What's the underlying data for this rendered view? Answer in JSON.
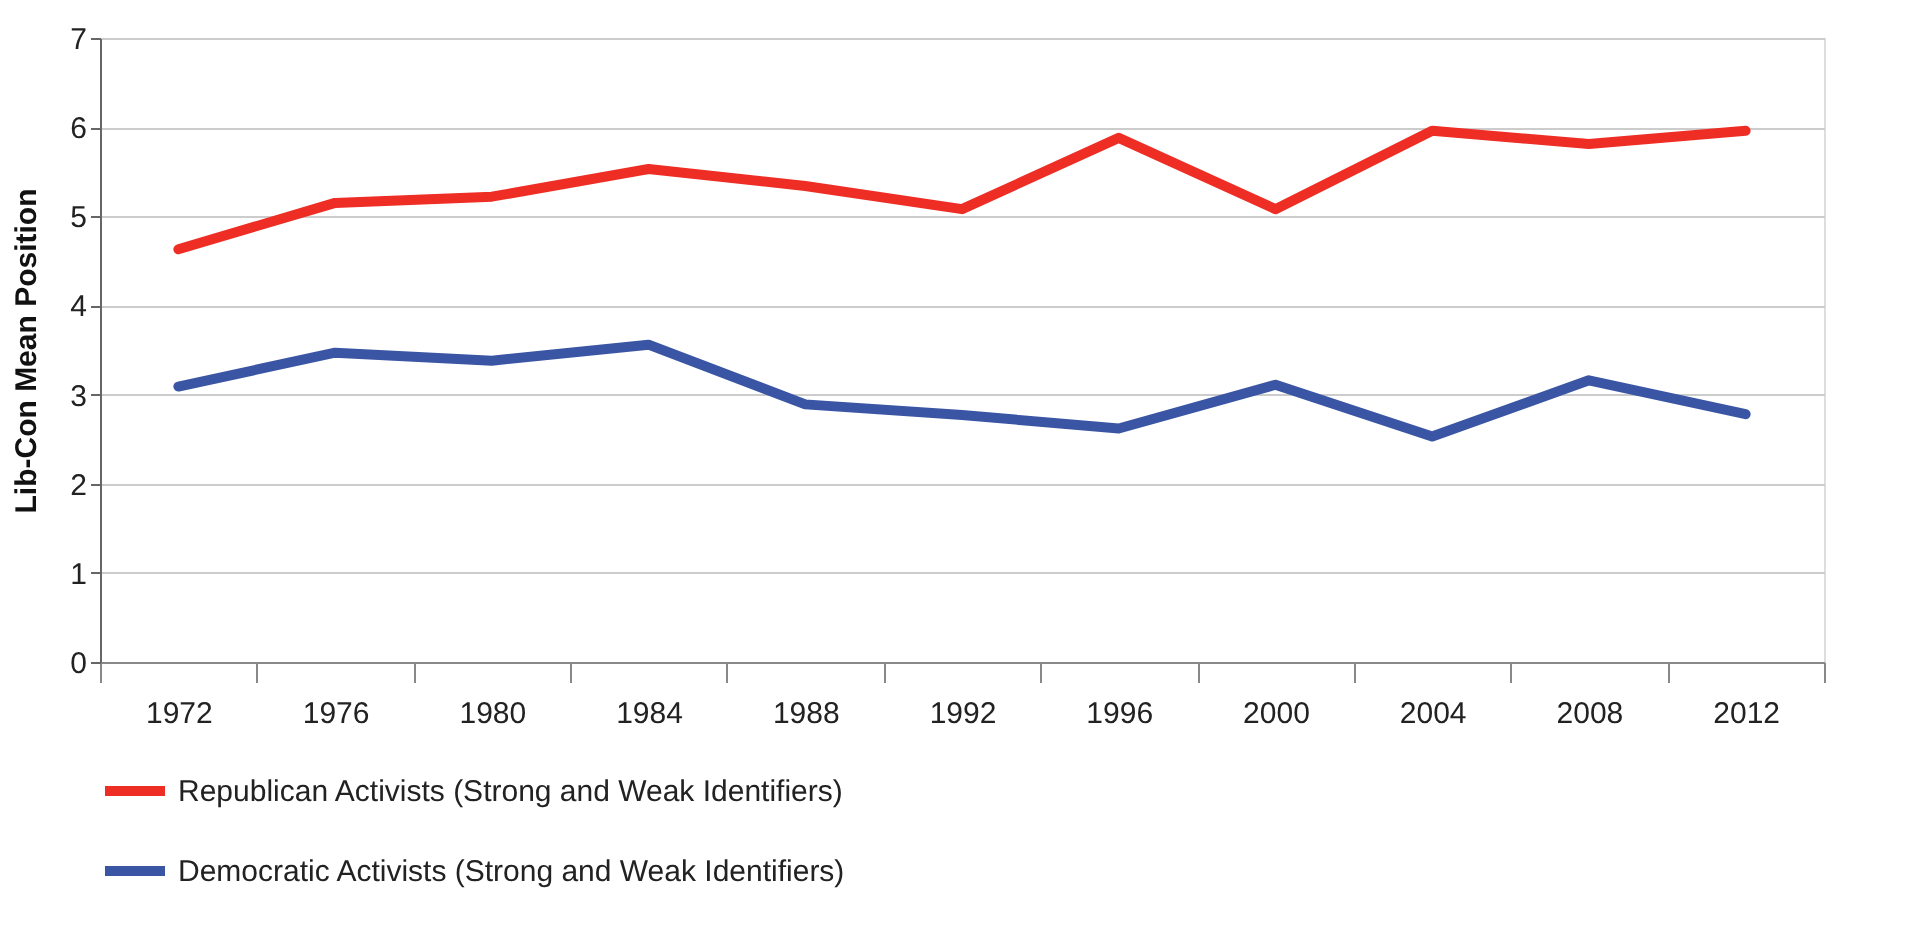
{
  "chart_data": {
    "type": "line",
    "ylabel": "Lib-Con Mean Position",
    "categories": [
      "1972",
      "1976",
      "1980",
      "1984",
      "1988",
      "1992",
      "1996",
      "2000",
      "2004",
      "2008",
      "2012"
    ],
    "series": [
      {
        "name": "Republican Activists (Strong and Weak Identifiers)",
        "color": "#ee2d24",
        "values": [
          4.63,
          5.15,
          5.22,
          5.53,
          5.34,
          5.08,
          5.88,
          5.08,
          5.96,
          5.81,
          5.96
        ]
      },
      {
        "name": "Democratic Activists (Strong and Weak Identifiers)",
        "color": "#3a55a4",
        "values": [
          3.09,
          3.47,
          3.38,
          3.56,
          2.89,
          2.77,
          2.62,
          3.11,
          2.53,
          3.16,
          2.78
        ]
      }
    ],
    "ylim": [
      0,
      7
    ],
    "yticks": [
      0,
      1,
      2,
      3,
      4,
      5,
      6,
      7
    ],
    "grid": "y",
    "legend": "bottom",
    "marker": "none",
    "line_style": "solid"
  }
}
